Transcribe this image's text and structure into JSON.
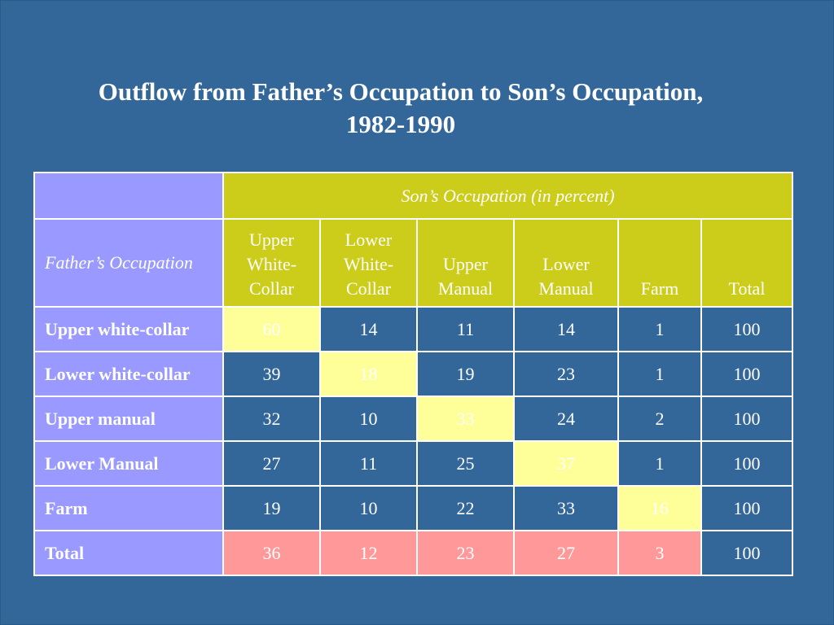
{
  "title": {
    "line1": "Outflow from Father’s Occupation to Son’s Occupation,",
    "line2": "1982-1990"
  },
  "table": {
    "son_header": "Son’s Occupation (in percent)",
    "father_header": "Father’s Occupation",
    "columns": [
      {
        "label": "Upper White-Collar",
        "lines": [
          "Upper",
          "White-",
          "Collar"
        ]
      },
      {
        "label": "Lower White-Collar",
        "lines": [
          "Lower",
          "White-",
          "Collar"
        ]
      },
      {
        "label": "Upper Manual",
        "lines": [
          "Upper",
          "Manual"
        ]
      },
      {
        "label": "Lower Manual",
        "lines": [
          "Lower",
          "Manual"
        ]
      },
      {
        "label": "Farm",
        "lines": [
          "Farm"
        ]
      },
      {
        "label": "Total",
        "lines": [
          "Total"
        ]
      }
    ],
    "rows": [
      {
        "label": "Upper white-collar",
        "values": [
          "60",
          "14",
          "11",
          "14",
          "1",
          "100"
        ]
      },
      {
        "label": "Lower white-collar",
        "values": [
          "39",
          "18",
          "19",
          "23",
          "1",
          "100"
        ]
      },
      {
        "label": "Upper manual",
        "values": [
          "32",
          "10",
          "33",
          "24",
          "2",
          "100"
        ]
      },
      {
        "label": "Lower Manual",
        "values": [
          "27",
          "11",
          "25",
          "37",
          "1",
          "100"
        ]
      },
      {
        "label": "Farm",
        "values": [
          "19",
          "10",
          "22",
          "33",
          "16",
          "100"
        ]
      },
      {
        "label": "Total",
        "values": [
          "36",
          "12",
          "23",
          "27",
          "3",
          "100"
        ]
      }
    ]
  },
  "colors": {
    "background": "#336699",
    "label_cells": "#9999ff",
    "header_cells": "#cccc1a",
    "diagonal_highlight": "#ffff99",
    "total_row_highlight": "#ff9999",
    "text": "#ffffff"
  }
}
